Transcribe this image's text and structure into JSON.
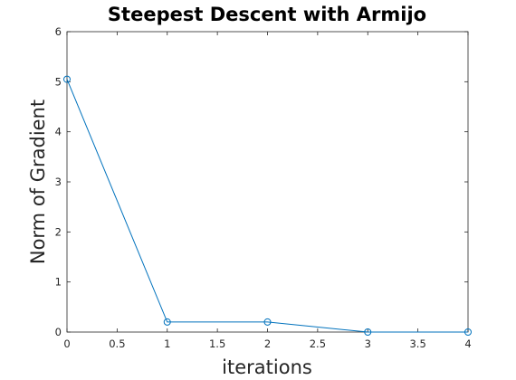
{
  "chart_data": {
    "type": "line",
    "title": "Steepest Descent with Armijo",
    "xlabel": "iterations",
    "ylabel": "Norm of Gradient",
    "xlim": [
      0,
      4
    ],
    "ylim": [
      0,
      6
    ],
    "xticks": [
      "0",
      "0.5",
      "1",
      "1.5",
      "2",
      "2.5",
      "3",
      "3.5",
      "4"
    ],
    "yticks": [
      "0",
      "1",
      "2",
      "3",
      "4",
      "5",
      "6"
    ],
    "grid": false,
    "legend": "none",
    "marker": "circle",
    "series_color": "#0072BD",
    "series": [
      {
        "x": [
          0,
          1,
          2,
          3,
          4
        ],
        "values": [
          5.05,
          0.2,
          0.2,
          0.0,
          0.0
        ]
      }
    ]
  }
}
